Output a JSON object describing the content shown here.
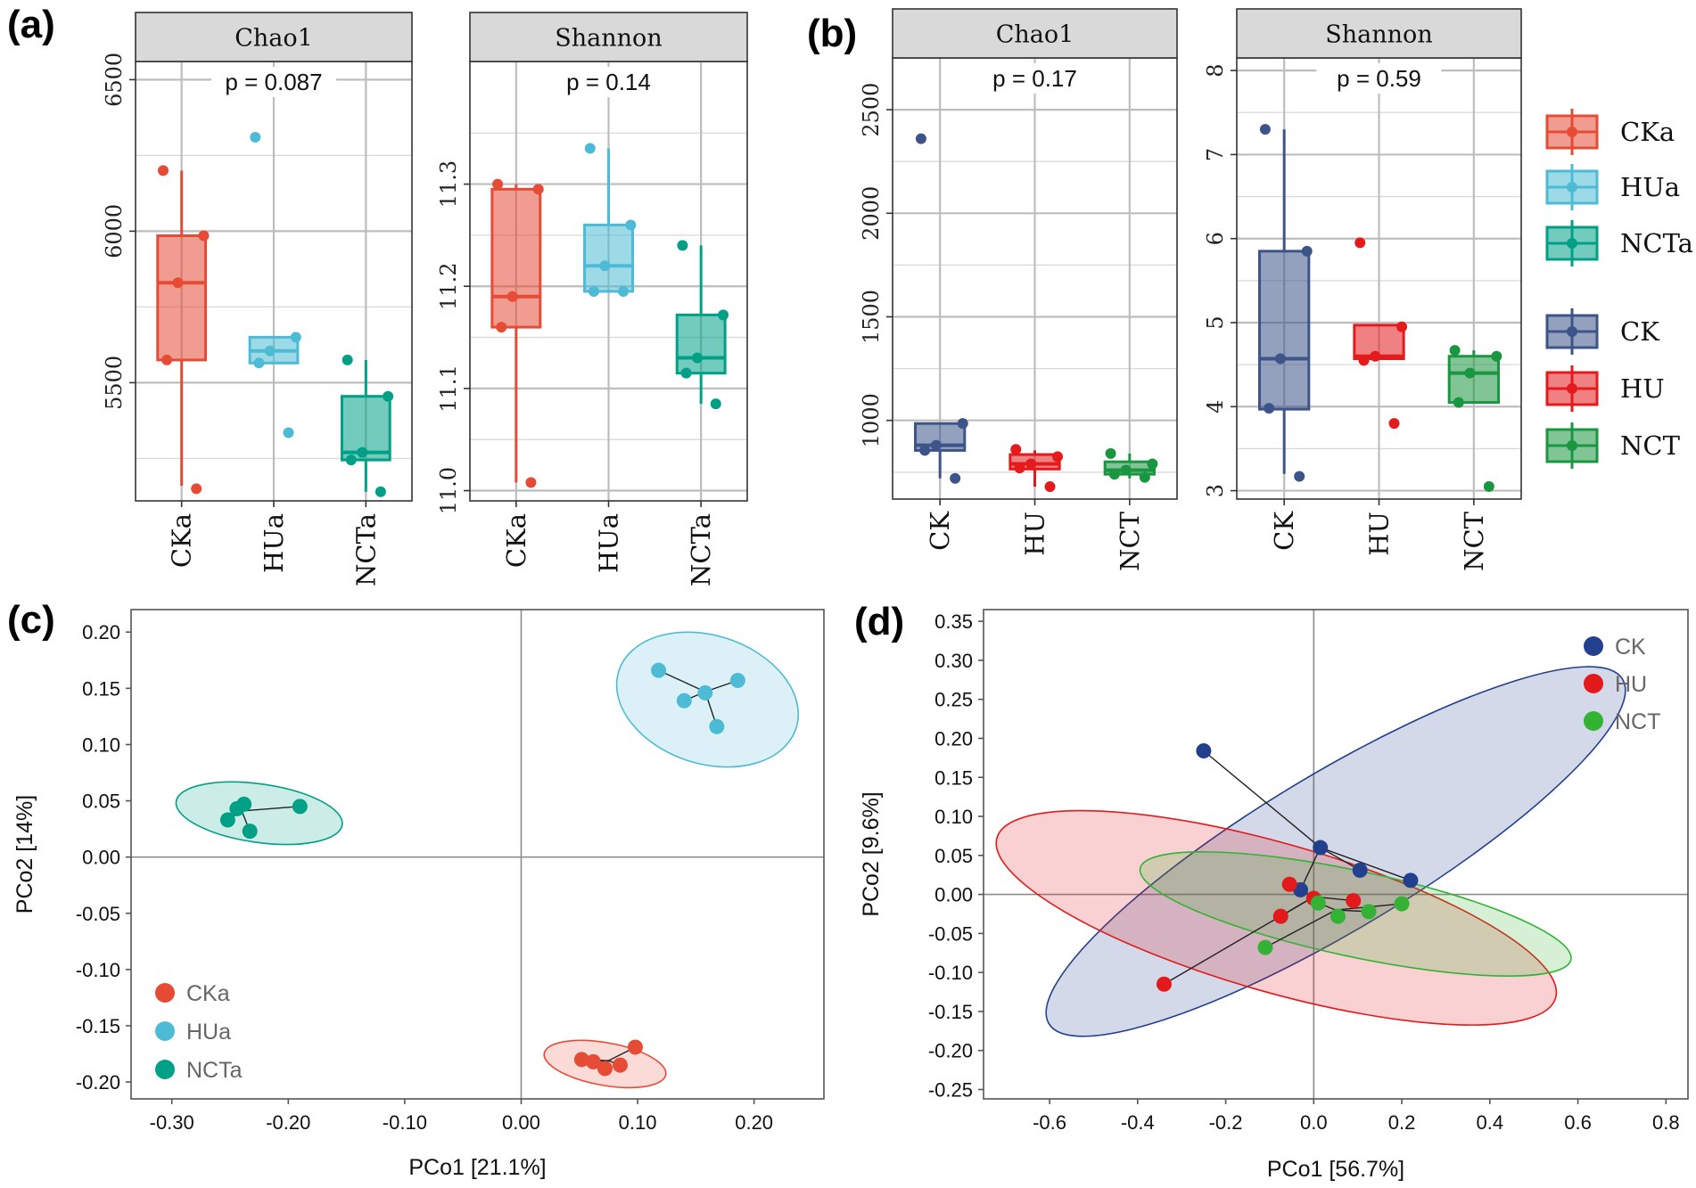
{
  "panel_labels": [
    "(a)",
    "(b)",
    "(c)",
    "(d)"
  ],
  "colors": {
    "CKa": "#e64b35",
    "HUa": "#4dbbd5",
    "NCTa": "#00a087",
    "CK": "#3c5488",
    "HU": "#e41a1c",
    "NCT": "#1a9641",
    "CK_pcoa": "#23408e",
    "HU_pcoa": "#e31a1c",
    "NCT_pcoa": "#33b233"
  },
  "legend_ab": [
    "CKa",
    "HUa",
    "NCTa",
    "CK",
    "HU",
    "NCT"
  ],
  "chart_data": [
    {
      "id": "a-chao1",
      "type": "box",
      "title": "Chao1",
      "pvalue": "p = 0.087",
      "categories": [
        "CKa",
        "HUa",
        "NCTa"
      ],
      "ylim": [
        5110,
        6560
      ],
      "yticks": [
        5500,
        6000,
        6500
      ],
      "ytick_labels": [
        "5500",
        "6000",
        "6500"
      ],
      "boxes": [
        {
          "group": "CKa",
          "q1": 5575,
          "median": 5830,
          "q3": 5985,
          "wlo": 5160,
          "whi": 6200,
          "points": [
            6200,
            5985,
            5830,
            5575,
            5150
          ]
        },
        {
          "group": "HUa",
          "q1": 5565,
          "median": 5605,
          "q3": 5650,
          "wlo": 5565,
          "whi": 5650,
          "points": [
            6310,
            5650,
            5605,
            5565,
            5335
          ]
        },
        {
          "group": "NCTa",
          "q1": 5245,
          "median": 5270,
          "q3": 5455,
          "wlo": 5140,
          "whi": 5575,
          "points": [
            5575,
            5455,
            5270,
            5245,
            5140
          ]
        }
      ]
    },
    {
      "id": "a-shannon",
      "type": "box",
      "title": "Shannon",
      "pvalue": "p = 0.14",
      "categories": [
        "CKa",
        "HUa",
        "NCTa"
      ],
      "ylim": [
        10.99,
        11.42
      ],
      "yticks": [
        11.0,
        11.1,
        11.2,
        11.3
      ],
      "ytick_labels": [
        "11.0",
        "11.1",
        "11.2",
        "11.3"
      ],
      "boxes": [
        {
          "group": "CKa",
          "q1": 11.16,
          "median": 11.19,
          "q3": 11.295,
          "wlo": 11.008,
          "whi": 11.3,
          "points": [
            11.3,
            11.295,
            11.19,
            11.16,
            11.008
          ]
        },
        {
          "group": "HUa",
          "q1": 11.195,
          "median": 11.22,
          "q3": 11.26,
          "wlo": 11.195,
          "whi": 11.335,
          "points": [
            11.335,
            11.26,
            11.22,
            11.195,
            11.195
          ]
        },
        {
          "group": "NCTa",
          "q1": 11.115,
          "median": 11.13,
          "q3": 11.172,
          "wlo": 11.085,
          "whi": 11.24,
          "points": [
            11.24,
            11.172,
            11.13,
            11.115,
            11.085
          ]
        }
      ]
    },
    {
      "id": "b-chao1",
      "type": "box",
      "title": "Chao1",
      "pvalue": "p = 0.17",
      "categories": [
        "CK",
        "HU",
        "NCT"
      ],
      "ylim": [
        620,
        2750
      ],
      "yticks": [
        1000,
        1500,
        2000,
        2500
      ],
      "ytick_labels": [
        "1000",
        "1500",
        "2000",
        "2500"
      ],
      "boxes": [
        {
          "group": "CK",
          "q1": 855,
          "median": 880,
          "q3": 985,
          "wlo": 720,
          "whi": 985,
          "points": [
            2360,
            985,
            880,
            855,
            720
          ]
        },
        {
          "group": "HU",
          "q1": 765,
          "median": 790,
          "q3": 835,
          "wlo": 680,
          "whi": 855,
          "points": [
            860,
            825,
            790,
            770,
            680
          ]
        },
        {
          "group": "NCT",
          "q1": 740,
          "median": 760,
          "q3": 800,
          "wlo": 720,
          "whi": 840,
          "points": [
            840,
            790,
            760,
            740,
            725
          ]
        }
      ]
    },
    {
      "id": "b-shannon",
      "type": "box",
      "title": "Shannon",
      "pvalue": "p = 0.59",
      "categories": [
        "CK",
        "HU",
        "NCT"
      ],
      "ylim": [
        2.9,
        8.15
      ],
      "yticks": [
        3,
        4,
        5,
        6,
        7,
        8
      ],
      "ytick_labels": [
        "3",
        "4",
        "5",
        "6",
        "7",
        "8"
      ],
      "boxes": [
        {
          "group": "CK",
          "q1": 3.97,
          "median": 4.57,
          "q3": 5.85,
          "wlo": 3.2,
          "whi": 7.3,
          "points": [
            7.3,
            5.85,
            4.57,
            3.98,
            3.17
          ]
        },
        {
          "group": "HU",
          "q1": 4.57,
          "median": 4.6,
          "q3": 4.97,
          "wlo": 4.57,
          "whi": 4.97,
          "points": [
            5.95,
            4.95,
            4.6,
            4.55,
            3.8
          ]
        },
        {
          "group": "NCT",
          "q1": 4.05,
          "median": 4.4,
          "q3": 4.6,
          "wlo": 4.05,
          "whi": 4.67,
          "points": [
            4.67,
            4.6,
            4.4,
            4.05,
            3.05
          ]
        }
      ]
    },
    {
      "id": "c-pcoa",
      "type": "scatter",
      "xlabel": "PCo1 [21.1%]",
      "ylabel": "PCo2 [14%]",
      "xlim": [
        -0.335,
        0.26
      ],
      "ylim": [
        -0.215,
        0.22
      ],
      "xticks": [
        -0.3,
        -0.2,
        -0.1,
        0.0,
        0.1,
        0.2
      ],
      "xtick_labels": [
        "-0.30",
        "-0.20",
        "-0.10",
        "0.00",
        "0.10",
        "0.20"
      ],
      "yticks": [
        0.2,
        0.15,
        0.1,
        0.05,
        0.0,
        -0.05,
        -0.1,
        -0.15,
        -0.2
      ],
      "ytick_labels": [
        "0.20",
        "0.15",
        "0.10",
        "0.05",
        "0.00",
        "-0.05",
        "-0.10",
        "-0.15",
        "-0.20"
      ],
      "legend": [
        "CKa",
        "HUa",
        "NCTa"
      ],
      "series": [
        {
          "name": "CKa",
          "centroid": [
            0.075,
            -0.181
          ],
          "ellipse": {
            "cx": 0.072,
            "cy": -0.184,
            "rx": 0.053,
            "ry": 0.019,
            "angle": -10
          },
          "points": [
            [
              0.052,
              -0.18
            ],
            [
              0.062,
              -0.182
            ],
            [
              0.072,
              -0.188
            ],
            [
              0.085,
              -0.185
            ],
            [
              0.098,
              -0.169
            ]
          ]
        },
        {
          "name": "HUa",
          "centroid": [
            0.158,
            0.147
          ],
          "ellipse": {
            "cx": 0.16,
            "cy": 0.14,
            "rx": 0.08,
            "ry": 0.057,
            "angle": -18
          },
          "points": [
            [
              0.118,
              0.166
            ],
            [
              0.14,
              0.139
            ],
            [
              0.158,
              0.146
            ],
            [
              0.186,
              0.157
            ],
            [
              0.168,
              0.116
            ]
          ]
        },
        {
          "name": "NCTa",
          "centroid": [
            -0.24,
            0.041
          ],
          "ellipse": {
            "cx": -0.225,
            "cy": 0.039,
            "rx": 0.072,
            "ry": 0.026,
            "angle": -8
          },
          "points": [
            [
              -0.252,
              0.033
            ],
            [
              -0.244,
              0.043
            ],
            [
              -0.238,
              0.047
            ],
            [
              -0.233,
              0.023
            ],
            [
              -0.19,
              0.045
            ]
          ]
        }
      ]
    },
    {
      "id": "d-pcoa",
      "type": "scatter",
      "xlabel": "PCo1 [56.7%]",
      "ylabel": "PCo2 [9.6%]",
      "xlim": [
        -0.75,
        0.85
      ],
      "ylim": [
        -0.262,
        0.365
      ],
      "xticks": [
        -0.6,
        -0.4,
        -0.2,
        0.0,
        0.2,
        0.4,
        0.6,
        0.8
      ],
      "xtick_labels": [
        "-0.6",
        "-0.4",
        "-0.2",
        "0.0",
        "0.2",
        "0.4",
        "0.6",
        "0.8"
      ],
      "yticks": [
        0.35,
        0.3,
        0.25,
        0.2,
        0.15,
        0.1,
        0.05,
        0.0,
        -0.05,
        -0.1,
        -0.15,
        -0.2,
        -0.25
      ],
      "ytick_labels": [
        "0.35",
        "0.30",
        "0.25",
        "0.20",
        "0.15",
        "0.10",
        "0.05",
        "0.00",
        "-0.05",
        "-0.10",
        "-0.15",
        "-0.20",
        "-0.25"
      ],
      "legend": [
        "CK",
        "HU",
        "NCT"
      ],
      "series": [
        {
          "name": "CK",
          "color_key": "CK_pcoa",
          "centroid": [
            0.015,
            0.06
          ],
          "ellipse": {
            "cx": 0.05,
            "cy": 0.055,
            "rx": 0.76,
            "ry": 0.1,
            "angle": 31
          },
          "points": [
            [
              -0.25,
              0.184
            ],
            [
              -0.03,
              0.006
            ],
            [
              0.015,
              0.06
            ],
            [
              0.105,
              0.031
            ],
            [
              0.22,
              0.018
            ]
          ]
        },
        {
          "name": "HU",
          "color_key": "HU_pcoa",
          "centroid": [
            0.0,
            -0.003
          ],
          "ellipse": {
            "cx": -0.085,
            "cy": -0.03,
            "rx": 0.66,
            "ry": 0.095,
            "angle": -16
          },
          "points": [
            [
              -0.34,
              -0.115
            ],
            [
              -0.075,
              -0.028
            ],
            [
              -0.055,
              0.013
            ],
            [
              0.0,
              -0.005
            ],
            [
              0.09,
              -0.008
            ]
          ]
        },
        {
          "name": "NCT",
          "color_key": "NCT_pcoa",
          "centroid": [
            0.05,
            -0.02
          ],
          "ellipse": {
            "cx": 0.095,
            "cy": -0.025,
            "rx": 0.5,
            "ry": 0.055,
            "angle": -12
          },
          "points": [
            [
              -0.11,
              -0.068
            ],
            [
              0.01,
              -0.011
            ],
            [
              0.055,
              -0.028
            ],
            [
              0.125,
              -0.022
            ],
            [
              0.2,
              -0.012
            ]
          ]
        }
      ]
    }
  ]
}
